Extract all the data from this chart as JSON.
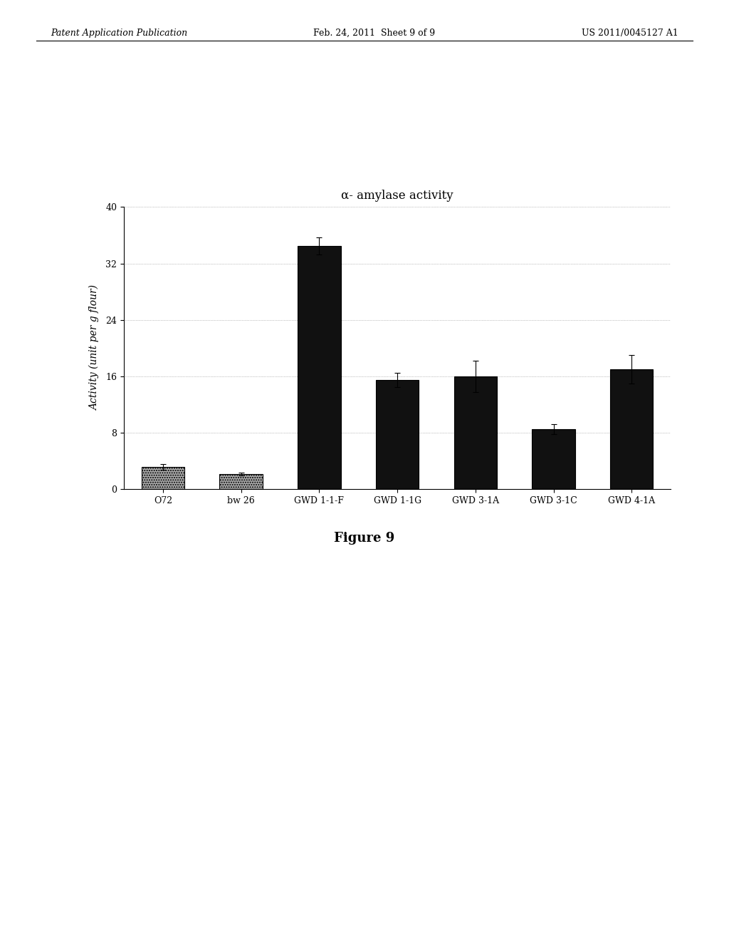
{
  "title": "α- amylase activity",
  "ylabel": "Activity (unit per g flour)",
  "categories": [
    "O72",
    "bw 26",
    "GWD 1-1-F",
    "GWD 1-1G",
    "GWD 3-1A",
    "GWD 3-1C",
    "GWD 4-1A"
  ],
  "values": [
    3.2,
    2.2,
    34.5,
    15.5,
    16.0,
    8.5,
    17.0
  ],
  "errors": [
    0.4,
    0.2,
    1.2,
    1.0,
    2.2,
    0.7,
    2.0
  ],
  "bar_colors": [
    "#aaaaaa",
    "#aaaaaa",
    "#111111",
    "#111111",
    "#111111",
    "#111111",
    "#111111"
  ],
  "bar_hatches": [
    ".....",
    ".....",
    "",
    "",
    "",
    "",
    ""
  ],
  "ylim": [
    0,
    40
  ],
  "yticks": [
    0,
    8,
    16,
    24,
    32,
    40
  ],
  "background_color": "#ffffff",
  "figure_caption": "Figure 9",
  "header_left": "Patent Application Publication",
  "header_center": "Feb. 24, 2011  Sheet 9 of 9",
  "header_right": "US 2011/0045127 A1",
  "figsize": [
    10.24,
    13.2
  ],
  "dpi": 100
}
